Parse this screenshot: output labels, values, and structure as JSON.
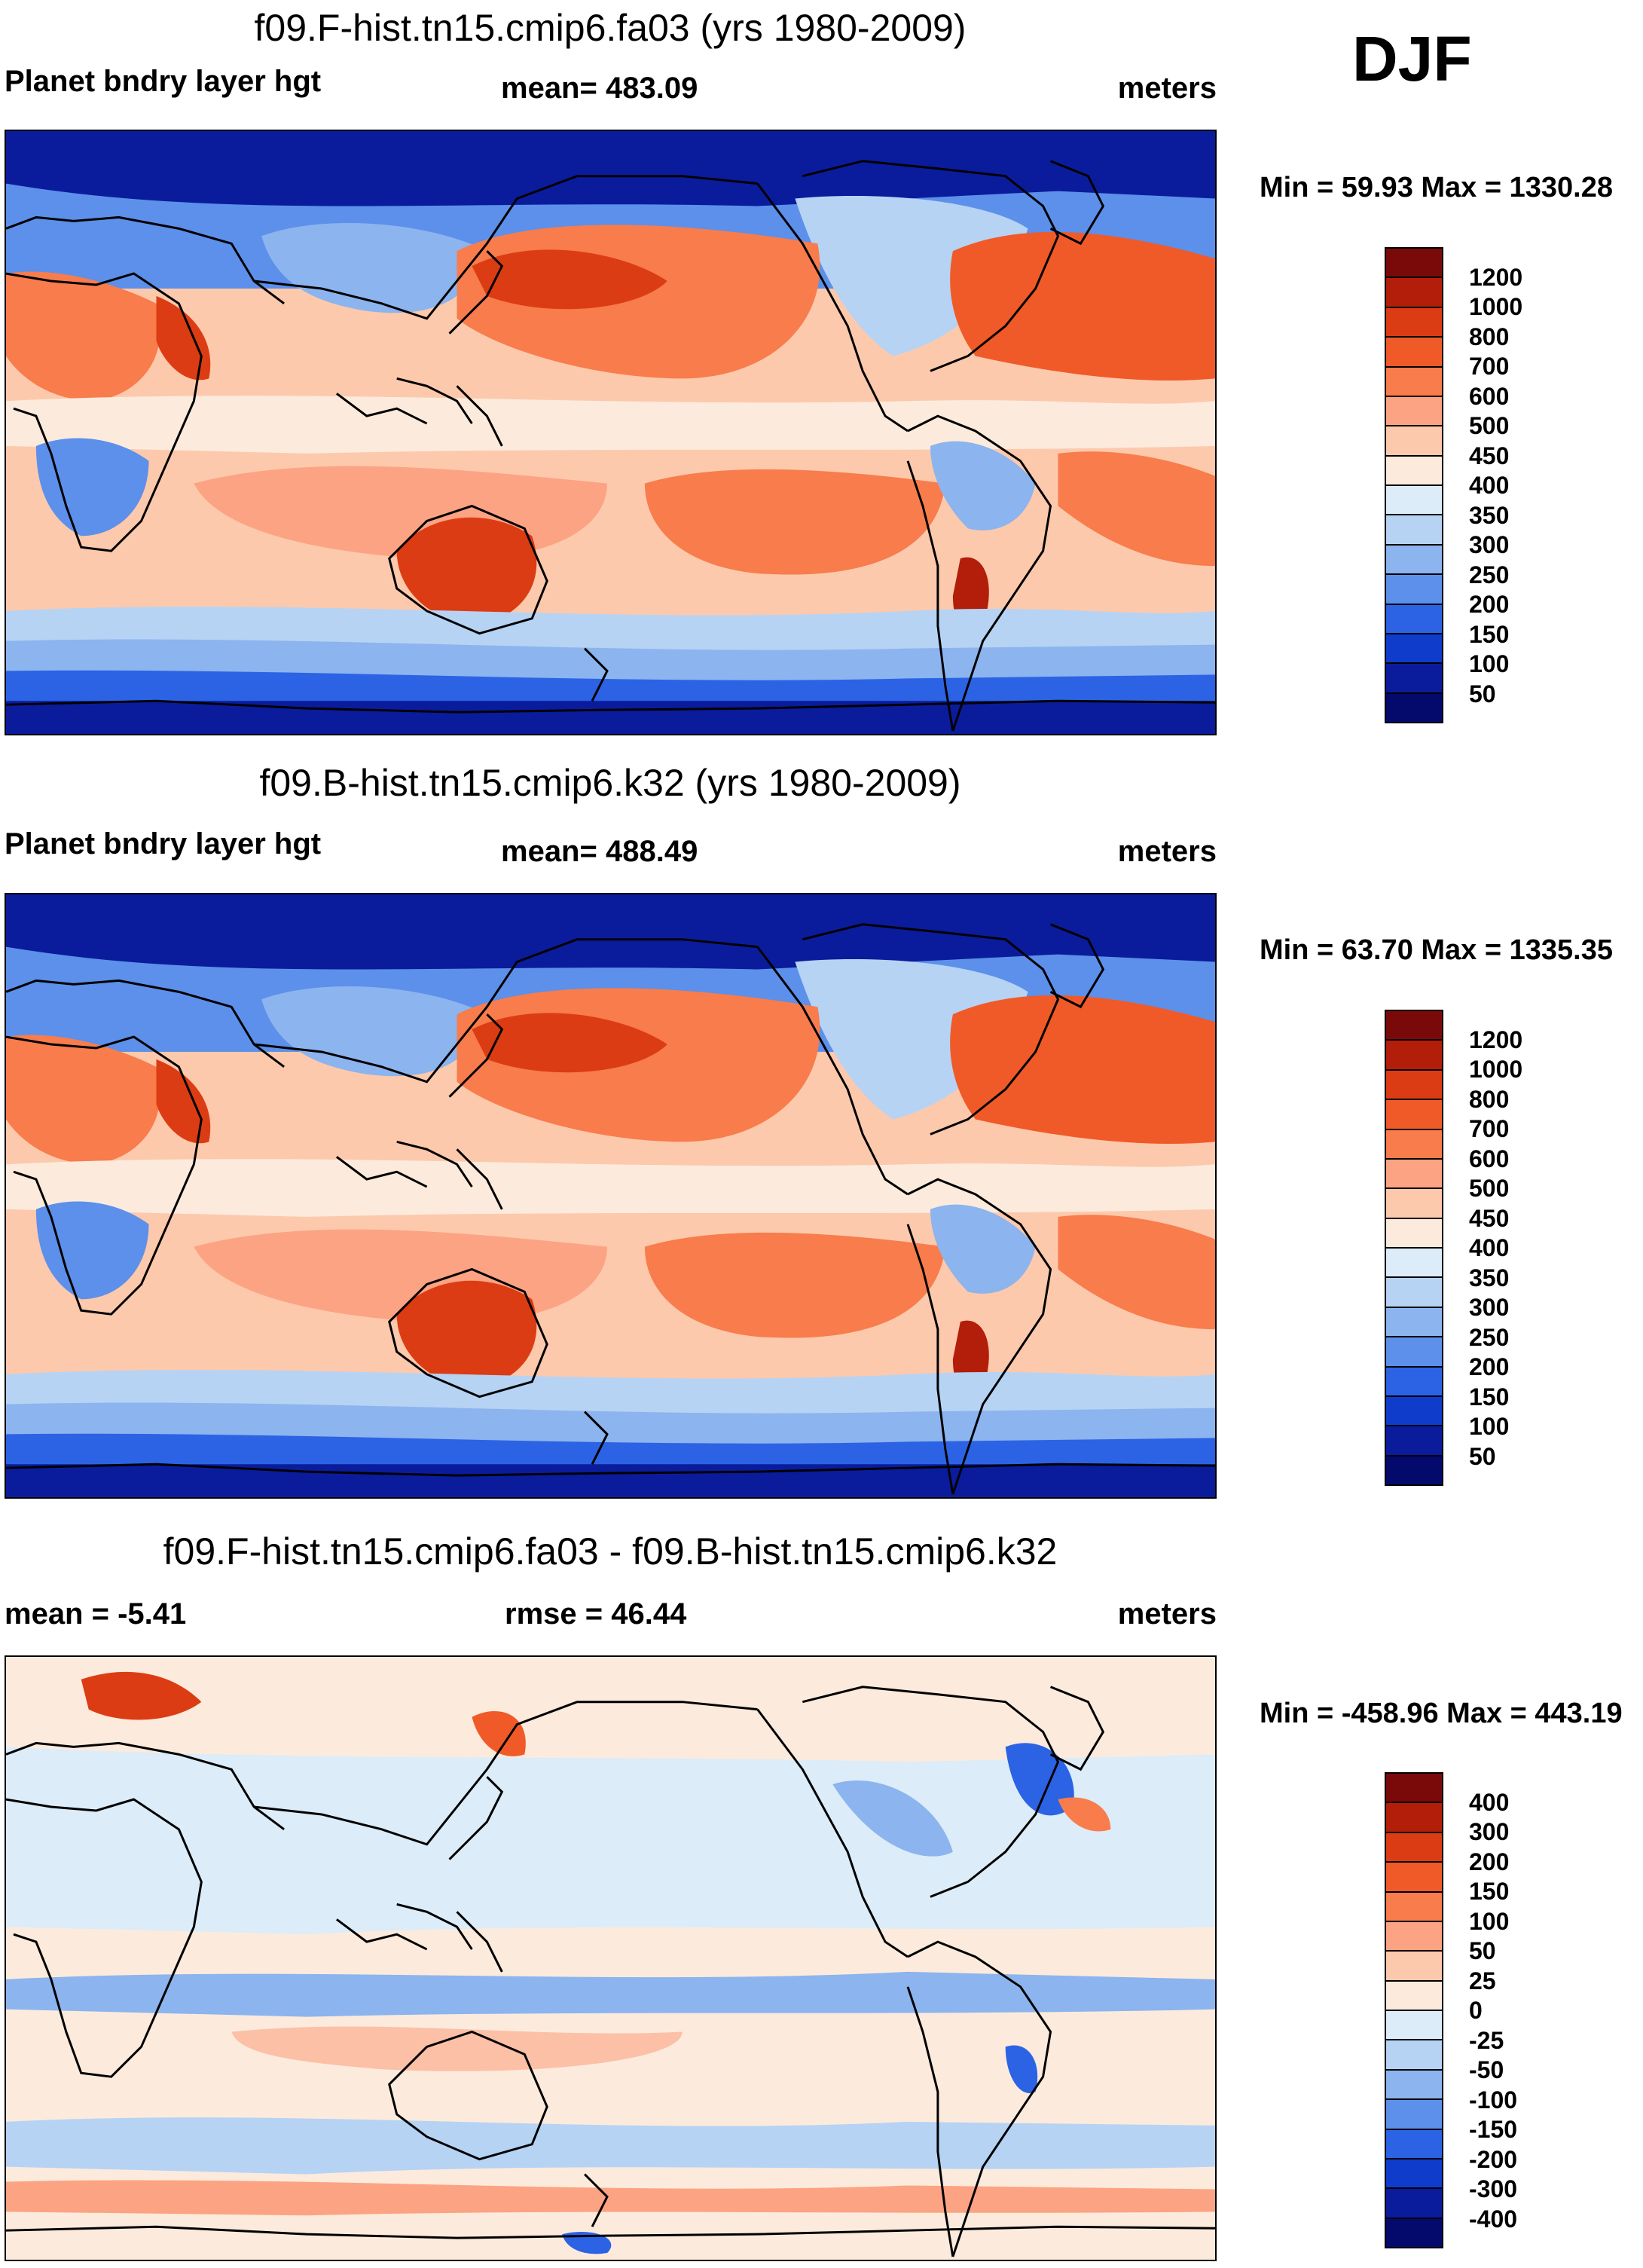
{
  "season": "DJF",
  "panels": [
    {
      "title": "f09.F-hist.tn15.cmip6.fa03 (yrs 1980-2009)",
      "left_label": "Planet bndry layer hgt",
      "center_label": "mean= 483.09",
      "right_label": "meters",
      "minmax": "Min =  59.93 Max = 1330.28",
      "colorbar": {
        "labels": [
          "1200",
          "1000",
          "800",
          "700",
          "600",
          "500",
          "450",
          "400",
          "350",
          "300",
          "250",
          "200",
          "150",
          "100",
          "50"
        ],
        "colors": [
          "#7a0a0a",
          "#b21e0a",
          "#dc3c14",
          "#f05a28",
          "#f87c4c",
          "#fca383",
          "#fdc9ac",
          "#fcebdc",
          "#dcecf8",
          "#b6d3f4",
          "#8cb4ee",
          "#5c90ea",
          "#2c63e4",
          "#103ccc",
          "#0a1c9c",
          "#040a6c"
        ]
      }
    },
    {
      "title": "f09.B-hist.tn15.cmip6.k32 (yrs 1980-2009)",
      "left_label": "Planet bndry layer hgt",
      "center_label": "mean= 488.49",
      "right_label": "meters",
      "minmax": "Min =  63.70 Max = 1335.35",
      "colorbar": {
        "labels": [
          "1200",
          "1000",
          "800",
          "700",
          "600",
          "500",
          "450",
          "400",
          "350",
          "300",
          "250",
          "200",
          "150",
          "100",
          "50"
        ],
        "colors": [
          "#7a0a0a",
          "#b21e0a",
          "#dc3c14",
          "#f05a28",
          "#f87c4c",
          "#fca383",
          "#fdc9ac",
          "#fcebdc",
          "#dcecf8",
          "#b6d3f4",
          "#8cb4ee",
          "#5c90ea",
          "#2c63e4",
          "#103ccc",
          "#0a1c9c",
          "#040a6c"
        ]
      }
    },
    {
      "title": "f09.F-hist.tn15.cmip6.fa03 - f09.B-hist.tn15.cmip6.k32",
      "left_label": "mean =  -5.41",
      "center_label": "rmse =  46.44",
      "right_label": "meters",
      "minmax": "Min = -458.96 Max = 443.19",
      "colorbar": {
        "labels": [
          "400",
          "300",
          "200",
          "150",
          "100",
          "50",
          "25",
          "0",
          "-25",
          "-50",
          "-100",
          "-150",
          "-200",
          "-300",
          "-400"
        ],
        "colors": [
          "#7a0a0a",
          "#b21e0a",
          "#dc3c14",
          "#f05a28",
          "#f87c4c",
          "#fca383",
          "#fdc9ac",
          "#fcebdc",
          "#dcecf8",
          "#b6d3f4",
          "#8cb4ee",
          "#5c90ea",
          "#2c63e4",
          "#103ccc",
          "#0a1c9c",
          "#040a6c"
        ]
      }
    }
  ]
}
